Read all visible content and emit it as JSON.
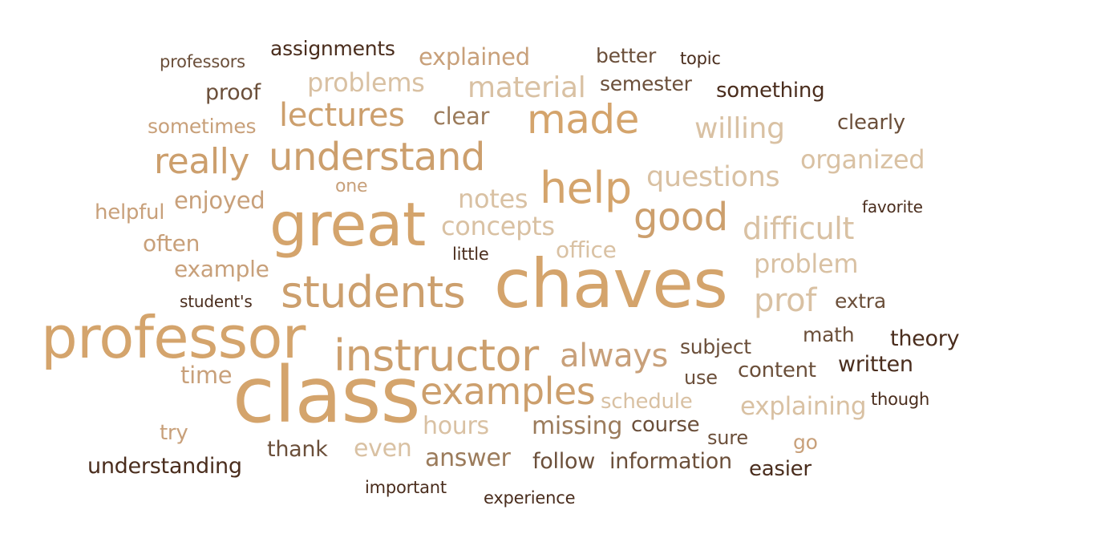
{
  "words": {
    "professors": "professors",
    "assignments": "assignments",
    "explained": "explained",
    "better": "better",
    "topic": "topic",
    "problems": "problems",
    "material": "material",
    "semester": "semester",
    "proof": "proof",
    "something": "something",
    "lectures": "lectures",
    "clear": "clear",
    "made": "made",
    "sometimes": "sometimes",
    "willing": "willing",
    "clearly": "clearly",
    "really": "really",
    "understand": "understand",
    "organized": "organized",
    "questions": "questions",
    "help": "help",
    "one": "one",
    "notes": "notes",
    "enjoyed": "enjoyed",
    "helpful": "helpful",
    "favorite": "favorite",
    "great": "great",
    "good": "good",
    "concepts": "concepts",
    "difficult": "difficult",
    "often": "often",
    "office": "office",
    "little": "little",
    "example": "example",
    "problem": "problem",
    "chaves": "chaves",
    "students": "students",
    "students_possessive": "student's",
    "prof": "prof",
    "extra": "extra",
    "professor": "professor",
    "math": "math",
    "theory": "theory",
    "subject": "subject",
    "instructor": "instructor",
    "always": "always",
    "time": "time",
    "use": "use",
    "content": "content",
    "written": "written",
    "class": "class",
    "examples": "examples",
    "schedule": "schedule",
    "though": "though",
    "explaining": "explaining",
    "try": "try",
    "hours": "hours",
    "missing": "missing",
    "course": "course",
    "sure": "sure",
    "go": "go",
    "thank": "thank",
    "even": "even",
    "understanding": "understanding",
    "answer": "answer",
    "follow": "follow",
    "information": "information",
    "easier": "easier",
    "important": "important",
    "experience": "experience"
  },
  "colors": {
    "main_tan": "#d4a46c",
    "tan": "#cc9f6d",
    "muted_tan": "#c8a07a",
    "light_tan": "#d9c1a3",
    "medium_brown": "#9b7b5b",
    "brown": "#6b4f3a",
    "dark_brown": "#4a2d1d"
  }
}
